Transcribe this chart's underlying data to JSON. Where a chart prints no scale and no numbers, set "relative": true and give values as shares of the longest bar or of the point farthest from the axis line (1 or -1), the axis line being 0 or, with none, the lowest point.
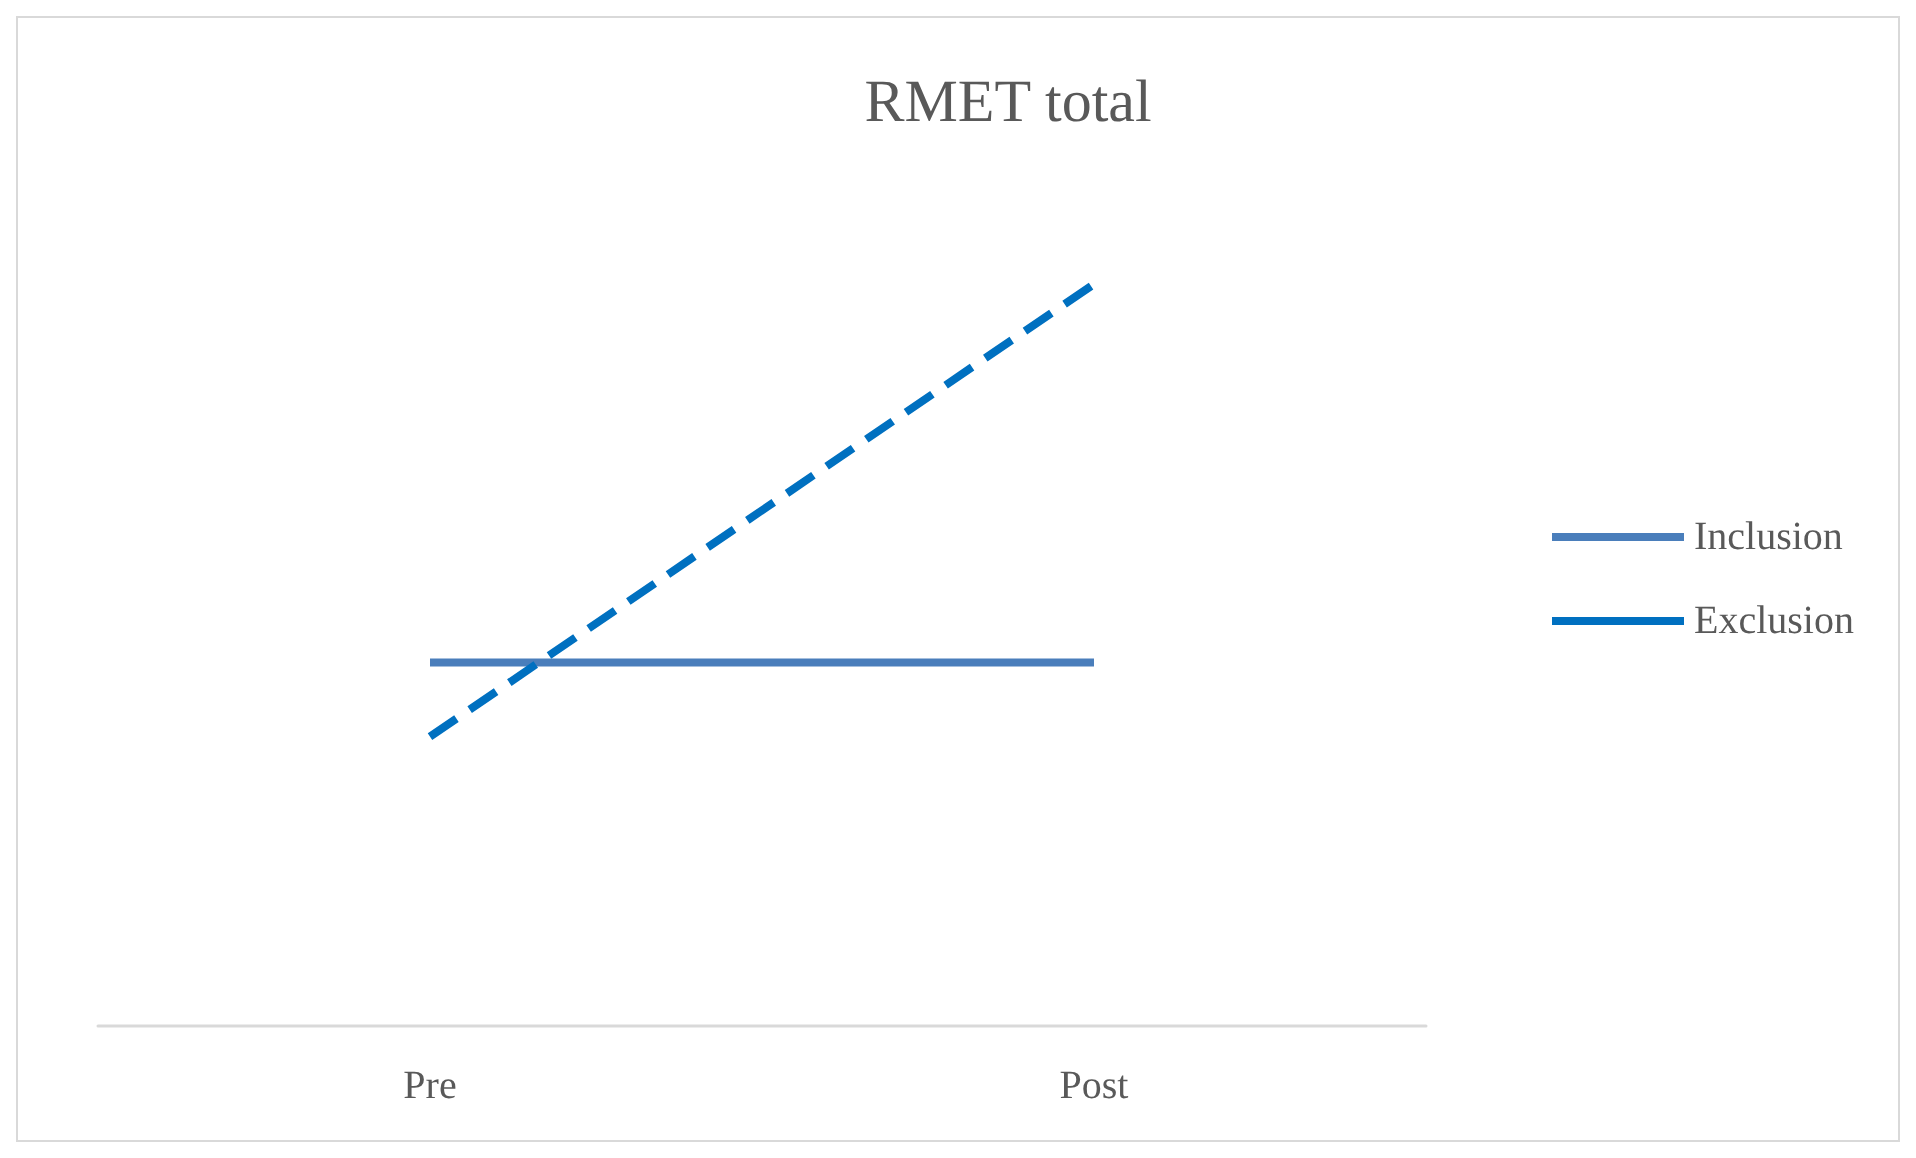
{
  "chart_data": {
    "type": "line",
    "title": "RMET total",
    "relative": true,
    "categories": [
      "Pre",
      "Post"
    ],
    "legend": "right",
    "marker": "none",
    "grid": false,
    "series": [
      {
        "name": "Inclusion",
        "color": "#4a7ebb",
        "line_style": "solid",
        "values": [
          0.49,
          0.49
        ]
      },
      {
        "name": "Exclusion",
        "color": "#0070c0",
        "line_style": "dashed",
        "values": [
          0.39,
          1
        ]
      }
    ]
  }
}
